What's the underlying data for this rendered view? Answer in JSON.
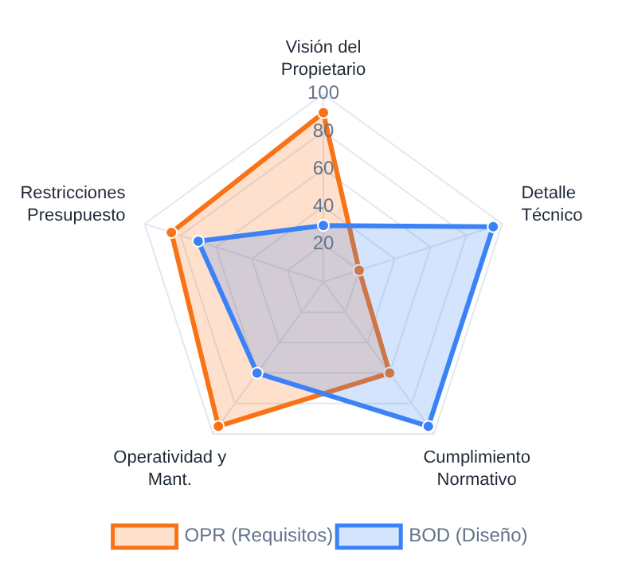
{
  "chart_data": {
    "type": "radar",
    "categories": [
      "Visión del Propietario",
      "Detalle Técnico",
      "Cumplimiento Normativo",
      "Operatividad y Mant.",
      "Restricciones Presupuesto"
    ],
    "series": [
      {
        "name": "OPR (Requisitos)",
        "color": "#f97316",
        "values": [
          90,
          20,
          60,
          95,
          85
        ]
      },
      {
        "name": "BOD (Diseño)",
        "color": "#3b82f6",
        "values": [
          30,
          95,
          95,
          60,
          70
        ]
      }
    ],
    "ylim": [
      0,
      100
    ],
    "yticks": [
      20,
      40,
      60,
      80,
      100
    ],
    "grid": true,
    "legend": "bottom",
    "marker": "circle"
  }
}
